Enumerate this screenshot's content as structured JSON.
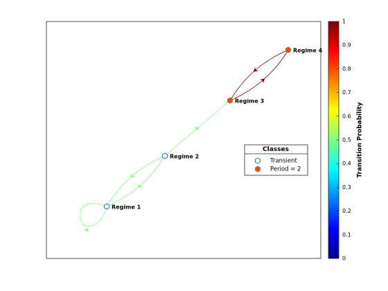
{
  "nodes": [
    {
      "label": "Regime 1",
      "class": 0
    },
    {
      "label": "Regime 2",
      "class": 0
    },
    {
      "label": "Regime 3",
      "class": 1
    },
    {
      "label": "Regime 4",
      "class": 1
    }
  ],
  "edges": [
    {
      "from": 0,
      "to": 0,
      "probability": 0.5
    },
    {
      "from": 0,
      "to": 1,
      "probability": 0.5
    },
    {
      "from": 1,
      "to": 0,
      "probability": 0.5
    },
    {
      "from": 1,
      "to": 2,
      "probability": 0.5
    },
    {
      "from": 2,
      "to": 3,
      "probability": 1
    },
    {
      "from": 3,
      "to": 2,
      "probability": 1
    }
  ],
  "legend": {
    "title": "Classes",
    "items": [
      "Transient",
      "Period = 2"
    ]
  },
  "colorbar": {
    "label": "Transition Probability",
    "lim": [
      0,
      1
    ],
    "ticks": [
      0,
      0.1,
      0.2,
      0.3,
      0.4,
      0.5,
      0.6,
      0.7,
      0.8,
      0.9,
      1
    ]
  }
}
